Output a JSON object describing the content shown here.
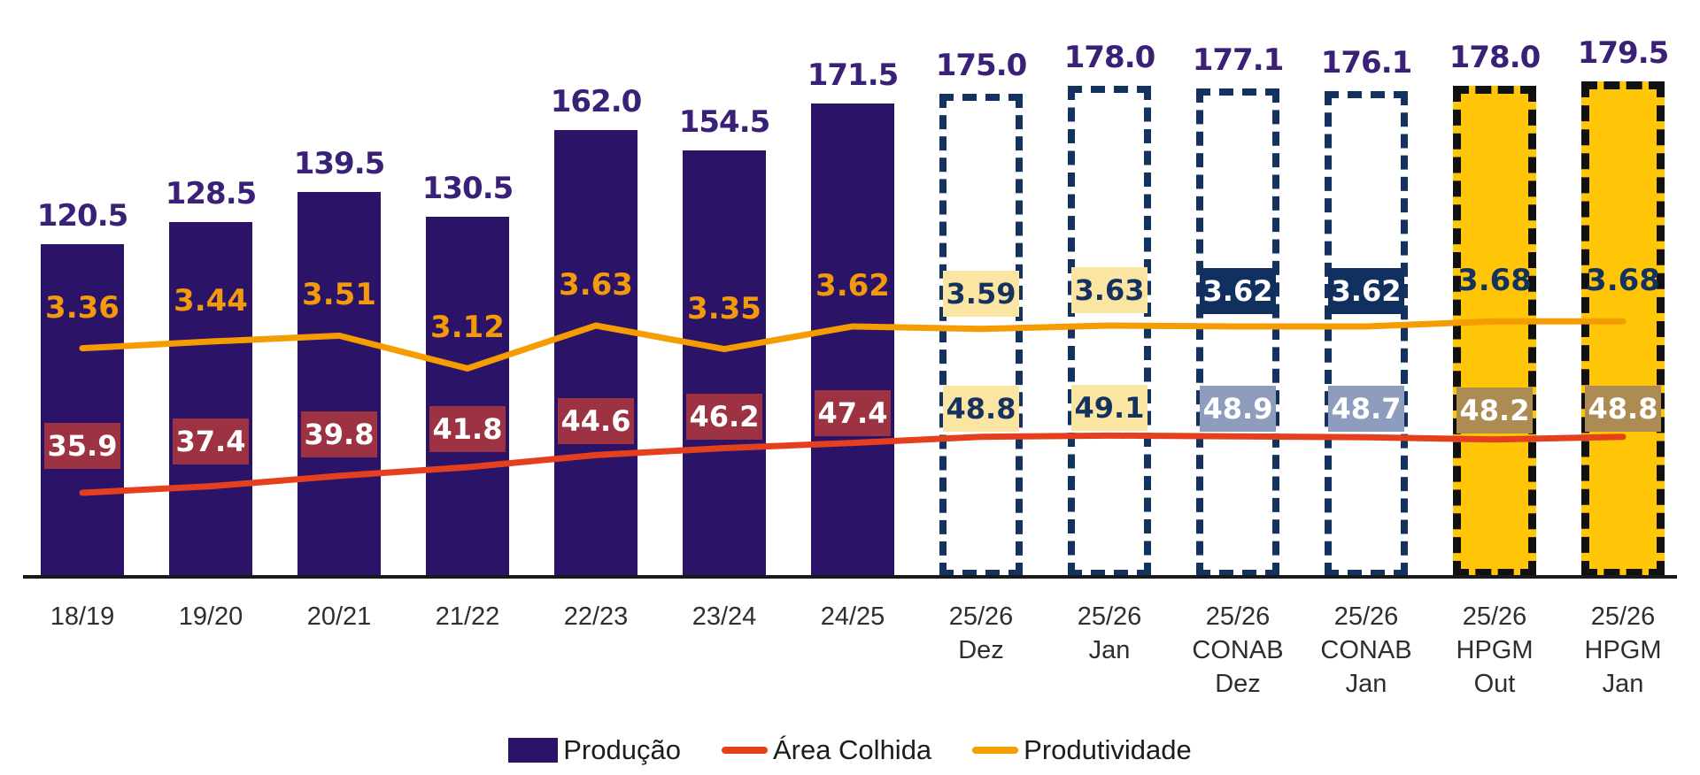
{
  "chart_data": {
    "type": "combo-bar-line",
    "description": "Soybean crop: production bars with harvested area and productivity lines, seasons 18/19 to 25/26 including estimate scenarios",
    "categories": [
      [
        "18/19"
      ],
      [
        "19/20"
      ],
      [
        "20/21"
      ],
      [
        "21/22"
      ],
      [
        "22/23"
      ],
      [
        "23/24"
      ],
      [
        "24/25"
      ],
      [
        "25/26",
        "Dez"
      ],
      [
        "25/26",
        "Jan"
      ],
      [
        "25/26",
        "CONAB",
        "Dez"
      ],
      [
        "25/26",
        "CONAB",
        "Jan"
      ],
      [
        "25/26",
        "HPGM",
        "Out"
      ],
      [
        "25/26",
        "HPGM",
        "Jan"
      ]
    ],
    "series": [
      {
        "name": "Produção",
        "type": "bar",
        "values": [
          120.5,
          128.5,
          139.5,
          130.5,
          162.0,
          154.5,
          171.5,
          175.0,
          178.0,
          177.1,
          176.1,
          178.0,
          179.5
        ],
        "labels": [
          "120.5",
          "128.5",
          "139.5",
          "130.5",
          "162.0",
          "154.5",
          "171.5",
          "175.0",
          "178.0",
          "177.1",
          "176.1",
          "178.0",
          "179.5"
        ],
        "bar_styles": [
          "solid",
          "solid",
          "solid",
          "solid",
          "solid",
          "solid",
          "solid",
          "estimate",
          "estimate",
          "conab",
          "conab",
          "hpgm",
          "hpgm"
        ]
      },
      {
        "name": "Área Colhida",
        "type": "line",
        "values": [
          35.9,
          37.4,
          39.8,
          41.8,
          44.6,
          46.2,
          47.4,
          48.8,
          49.1,
          48.9,
          48.7,
          48.2,
          48.8
        ],
        "labels": [
          "35.9",
          "37.4",
          "39.8",
          "41.8",
          "44.6",
          "46.2",
          "47.4",
          "48.8",
          "49.1",
          "48.9",
          "48.7",
          "48.2",
          "48.8"
        ]
      },
      {
        "name": "Produtividade",
        "type": "line",
        "values": [
          3.36,
          3.44,
          3.51,
          3.12,
          3.63,
          3.35,
          3.62,
          3.59,
          3.63,
          3.62,
          3.62,
          3.68,
          3.68
        ],
        "labels": [
          "3.36",
          "3.44",
          "3.51",
          "3.12",
          "3.63",
          "3.35",
          "3.62",
          "3.59",
          "3.63",
          "3.62",
          "3.62",
          "3.68",
          "3.68"
        ]
      }
    ],
    "legend": {
      "position": "bottom-center",
      "items": [
        {
          "label": "Produção",
          "swatch": "bar",
          "color": "#2B1467"
        },
        {
          "label": "Área Colhida",
          "swatch": "line",
          "color": "#E5401D"
        },
        {
          "label": "Produtividade",
          "swatch": "line",
          "color": "#F59C00"
        }
      ]
    },
    "axes": {
      "y_visible": false,
      "x_baseline_visible": true,
      "grid": false,
      "ylim_bar": [
        0,
        182
      ]
    },
    "colors": {
      "bar_solid": "#2B1467",
      "bar_estimate_dash": "#14325F",
      "bar_hpgm_fill": "#FFC608",
      "bar_hpgm_dash": "#111111",
      "production_label_text": "#3A2177",
      "productivity_text": "#F29A0B",
      "productivity_line": "#F59C00",
      "area_line": "#E5401D",
      "area_box_solid": "#9D3342",
      "label_box_yellow": "#FBE5A3",
      "label_box_navy": "#12305F",
      "label_box_grayblue": "#8E9DBD",
      "label_box_tan": "#AC8C53",
      "axis_line": "#1A1A1A"
    }
  }
}
